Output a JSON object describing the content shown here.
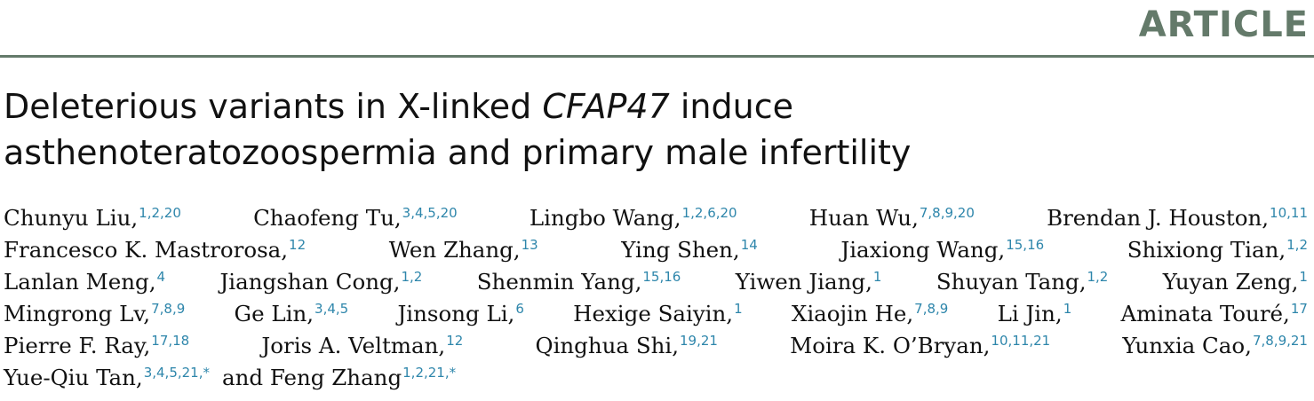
{
  "header": {
    "label": "ARTICLE"
  },
  "title": {
    "part1": "Deleterious variants in X-linked ",
    "gene": "CFAP47",
    "part2": " induce",
    "line2": "asthenoteratozoospermia and primary male infertility"
  },
  "authors": {
    "lines": [
      [
        {
          "name": "Chunyu Liu,",
          "aff": "1,2,20"
        },
        {
          "name": "Chaofeng Tu,",
          "aff": "3,4,5,20"
        },
        {
          "name": "Lingbo Wang,",
          "aff": "1,2,6,20"
        },
        {
          "name": "Huan Wu,",
          "aff": "7,8,9,20"
        },
        {
          "name": "Brendan J. Houston,",
          "aff": "10,11"
        }
      ],
      [
        {
          "name": "Francesco K. Mastrorosa,",
          "aff": "12"
        },
        {
          "name": "Wen Zhang,",
          "aff": "13"
        },
        {
          "name": "Ying Shen,",
          "aff": "14"
        },
        {
          "name": "Jiaxiong Wang,",
          "aff": "15,16"
        },
        {
          "name": "Shixiong Tian,",
          "aff": "1,2"
        }
      ],
      [
        {
          "name": "Lanlan Meng,",
          "aff": "4"
        },
        {
          "name": "Jiangshan Cong,",
          "aff": "1,2"
        },
        {
          "name": "Shenmin Yang,",
          "aff": "15,16"
        },
        {
          "name": "Yiwen Jiang,",
          "aff": "1"
        },
        {
          "name": "Shuyan Tang,",
          "aff": "1,2"
        },
        {
          "name": "Yuyan Zeng,",
          "aff": "1"
        }
      ],
      [
        {
          "name": "Mingrong Lv,",
          "aff": "7,8,9"
        },
        {
          "name": "Ge Lin,",
          "aff": "3,4,5"
        },
        {
          "name": "Jinsong Li,",
          "aff": "6"
        },
        {
          "name": "Hexige Saiyin,",
          "aff": "1"
        },
        {
          "name": "Xiaojin He,",
          "aff": "7,8,9"
        },
        {
          "name": "Li Jin,",
          "aff": "1"
        },
        {
          "name": "Aminata Touré,",
          "aff": "17"
        }
      ],
      [
        {
          "name": "Pierre F. Ray,",
          "aff": "17,18"
        },
        {
          "name": "Joris A. Veltman,",
          "aff": "12"
        },
        {
          "name": "Qinghua Shi,",
          "aff": "19,21"
        },
        {
          "name": "Moira K. O’Bryan,",
          "aff": "10,11,21"
        },
        {
          "name": "Yunxia Cao,",
          "aff": "7,8,9,21"
        }
      ],
      [
        {
          "name": "Yue-Qiu Tan,",
          "aff": "3,4,5,21,*"
        },
        {
          "name": "and Feng Zhang",
          "aff": "1,2,21,*"
        }
      ]
    ]
  },
  "colors": {
    "accent": "#647a6a",
    "rule": "#647a6a",
    "affiliation": "#2e86ab",
    "text": "#111111"
  }
}
